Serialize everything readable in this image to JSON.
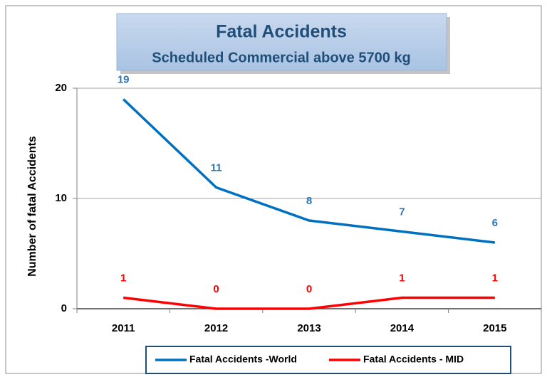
{
  "chart_data": {
    "type": "line",
    "title": "Fatal Accidents",
    "subtitle": "Scheduled Commercial above 5700 kg",
    "y_label": "Number of fatal Accidents",
    "categories": [
      "2011",
      "2012",
      "2013",
      "2014",
      "2015"
    ],
    "series": [
      {
        "name": "Fatal Accidents -World",
        "color": "#0070c0",
        "label_color": "#2e75b6",
        "values": [
          19,
          11,
          8,
          7,
          6
        ]
      },
      {
        "name": "Fatal Accidents - MID",
        "color": "#ff0000",
        "label_color": "#ff0000",
        "values": [
          1,
          0,
          0,
          1,
          1
        ]
      }
    ],
    "ylim": [
      0,
      20
    ],
    "yticks": [
      0,
      10,
      20
    ],
    "grid": true,
    "legend": "bottom"
  }
}
